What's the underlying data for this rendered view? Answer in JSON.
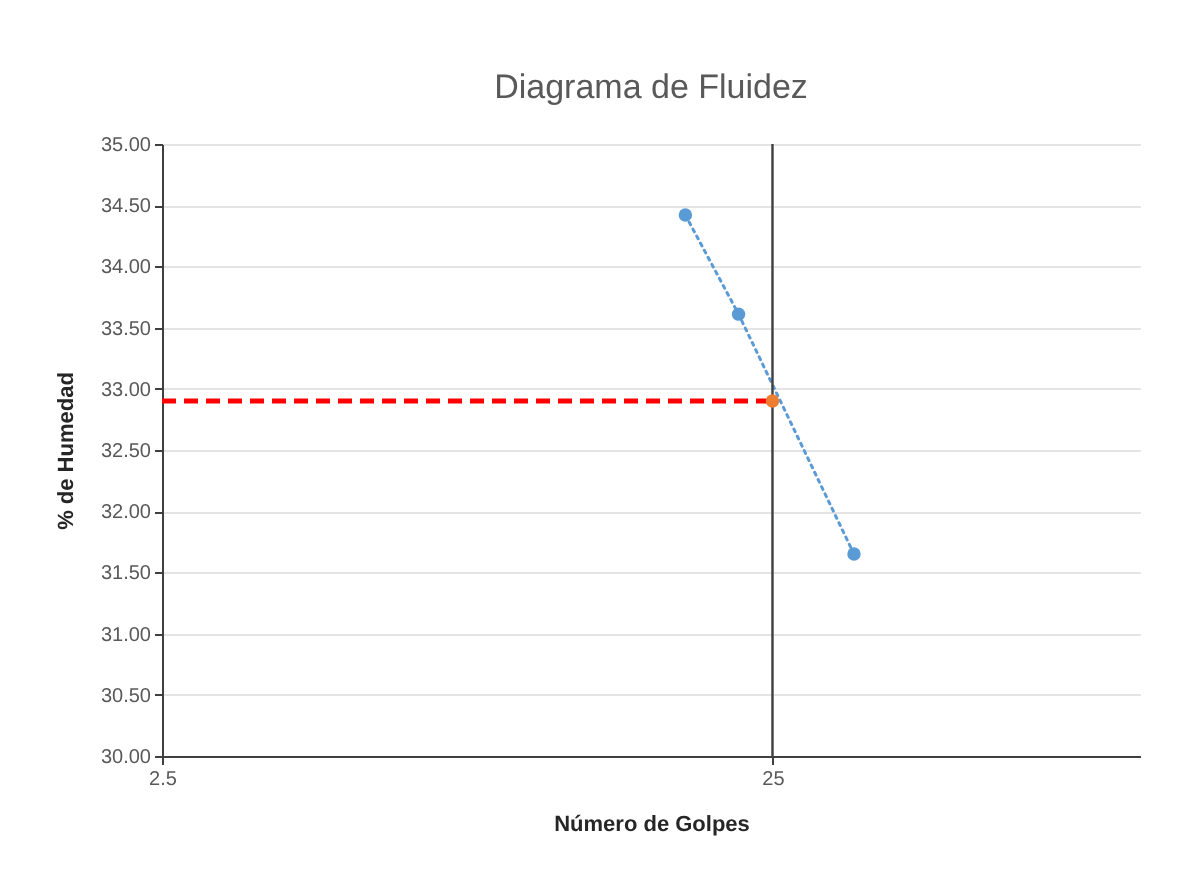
{
  "chart_data": {
    "type": "line",
    "title": "Diagrama de Fluidez",
    "xlabel": "Número de Golpes",
    "ylabel": "% de Humedad",
    "log": "x",
    "xlim": [
      2.5,
      100
    ],
    "xticks": [
      2.5,
      25
    ],
    "ylim": [
      30,
      35
    ],
    "yticks": [
      {
        "value": 30,
        "label": "30.00"
      },
      {
        "value": 30.5,
        "label": "30.50"
      },
      {
        "value": 31,
        "label": "31.00"
      },
      {
        "value": 31.5,
        "label": "31.50"
      },
      {
        "value": 32,
        "label": "32.00"
      },
      {
        "value": 32.5,
        "label": "32.50"
      },
      {
        "value": 33,
        "label": "33.00"
      },
      {
        "value": 33.5,
        "label": "33.50"
      },
      {
        "value": 34,
        "label": "34.00"
      },
      {
        "value": 34.5,
        "label": "34.50"
      },
      {
        "value": 35,
        "label": "35.00"
      }
    ],
    "grid": true,
    "series": [
      {
        "color": "#5b9bd5",
        "x": [
          18,
          22,
          34
        ],
        "values": [
          34.42,
          33.61,
          31.65
        ],
        "marker": "circle",
        "line_style": "dotted"
      },
      {
        "color": "#ff0000",
        "x": [
          2.5,
          25
        ],
        "values": [
          32.9,
          32.9
        ],
        "marker": "none",
        "line_style": "dashed"
      },
      {
        "type": "scatter",
        "color": "#ed7d31",
        "x": [
          25
        ],
        "values": [
          32.9
        ],
        "marker": "circle"
      }
    ],
    "ref_lines": [
      {
        "axis": "x",
        "value": 25,
        "color": "#404040"
      }
    ]
  }
}
